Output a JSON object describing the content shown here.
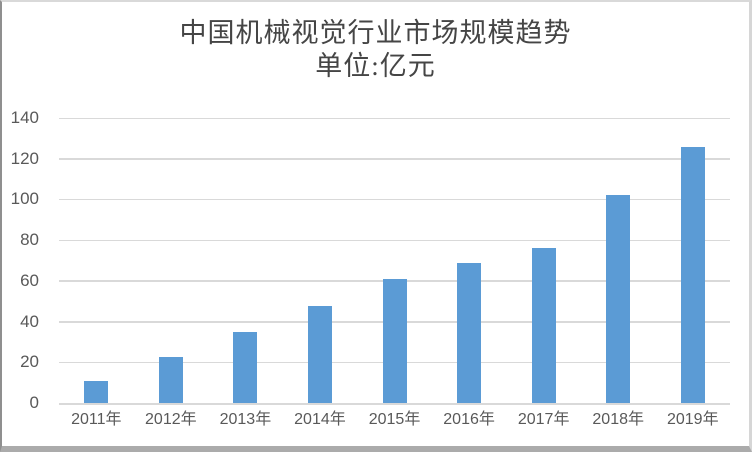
{
  "chart_data": {
    "type": "bar",
    "title": "中国机械视觉行业市场规模趋势",
    "subtitle": "单位:亿元",
    "categories": [
      "2011年",
      "2012年",
      "2013年",
      "2014年",
      "2015年",
      "2016年",
      "2017年",
      "2018年",
      "2019年"
    ],
    "values": [
      11,
      22.5,
      35,
      47.5,
      61,
      69,
      76,
      102,
      126
    ],
    "xlabel": "",
    "ylabel": "",
    "ylim": [
      0,
      140
    ],
    "ytick_step": 20,
    "grid": true,
    "legend_position": "none",
    "bar_color": "#5B9BD5",
    "gridline_color": "#D9D9D9",
    "axis_label_color": "#595959",
    "title_color": "#454545"
  }
}
